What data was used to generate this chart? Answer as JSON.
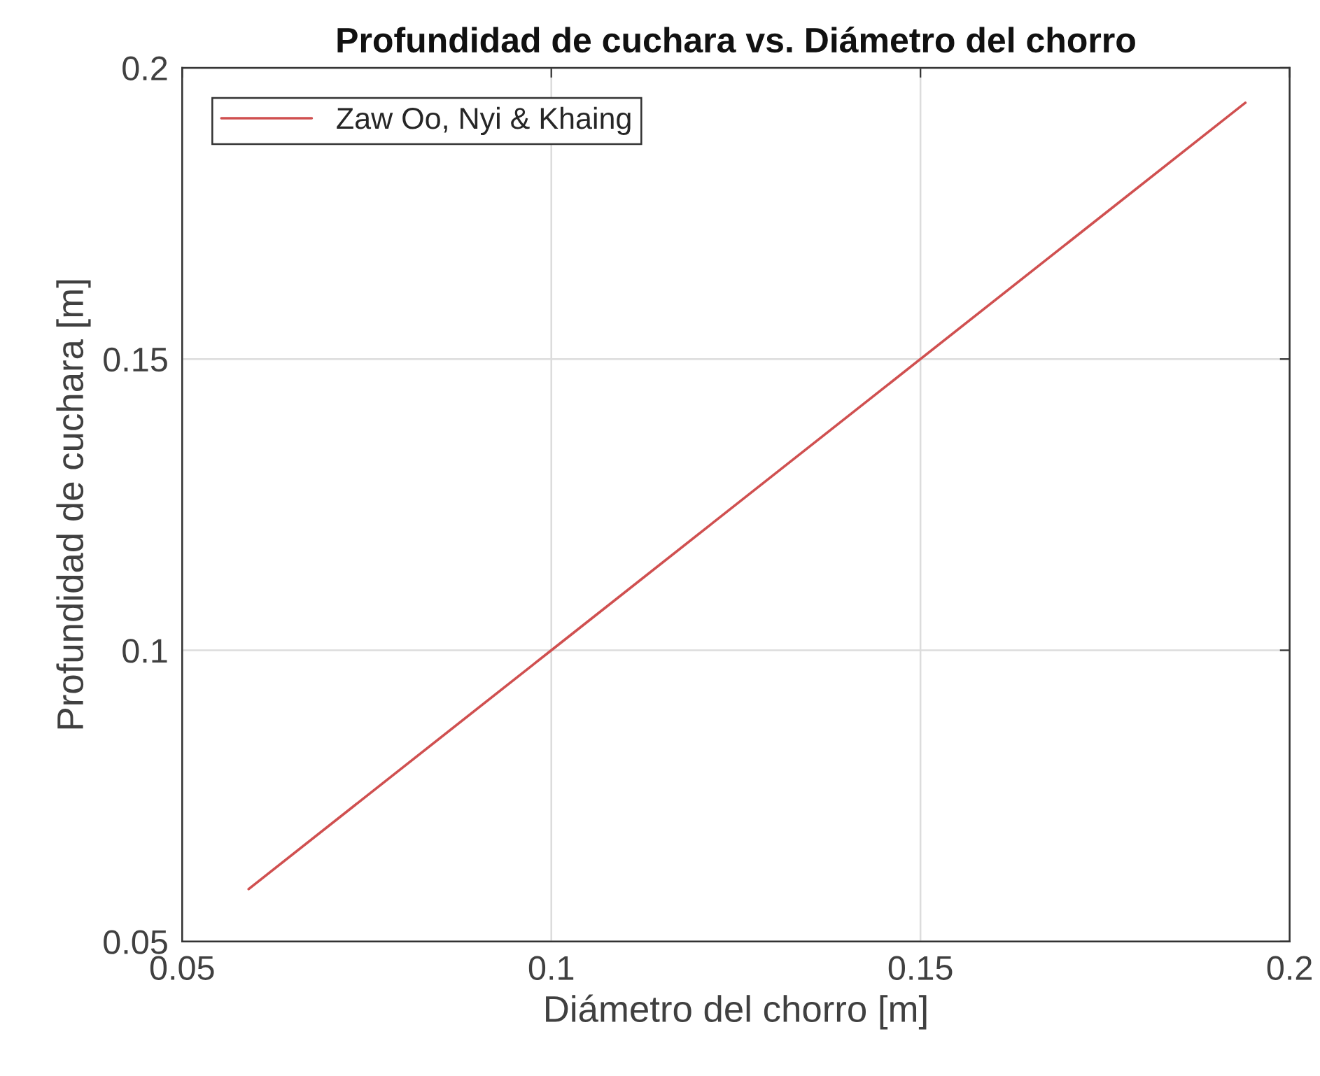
{
  "chart_data": {
    "type": "line",
    "title": "Profundidad de cuchara vs. Diámetro del chorro",
    "xlabel": "Diámetro del chorro [m]",
    "ylabel": "Profundidad de cuchara [m]",
    "x": [
      0.059,
      0.1,
      0.15,
      0.194
    ],
    "series": [
      {
        "name": "Zaw Oo, Nyi & Khaing",
        "color": "#d05050",
        "values": [
          0.059,
          0.1,
          0.15,
          0.194
        ]
      }
    ],
    "xlim": [
      0.05,
      0.2
    ],
    "xticks": [
      0.05,
      0.1,
      0.15,
      0.2
    ],
    "ylim": [
      0.05,
      0.2
    ],
    "yticks": [
      0.05,
      0.1,
      0.15,
      0.2
    ],
    "grid": true,
    "legend": "top left",
    "marker": "none",
    "line_style": "solid"
  }
}
